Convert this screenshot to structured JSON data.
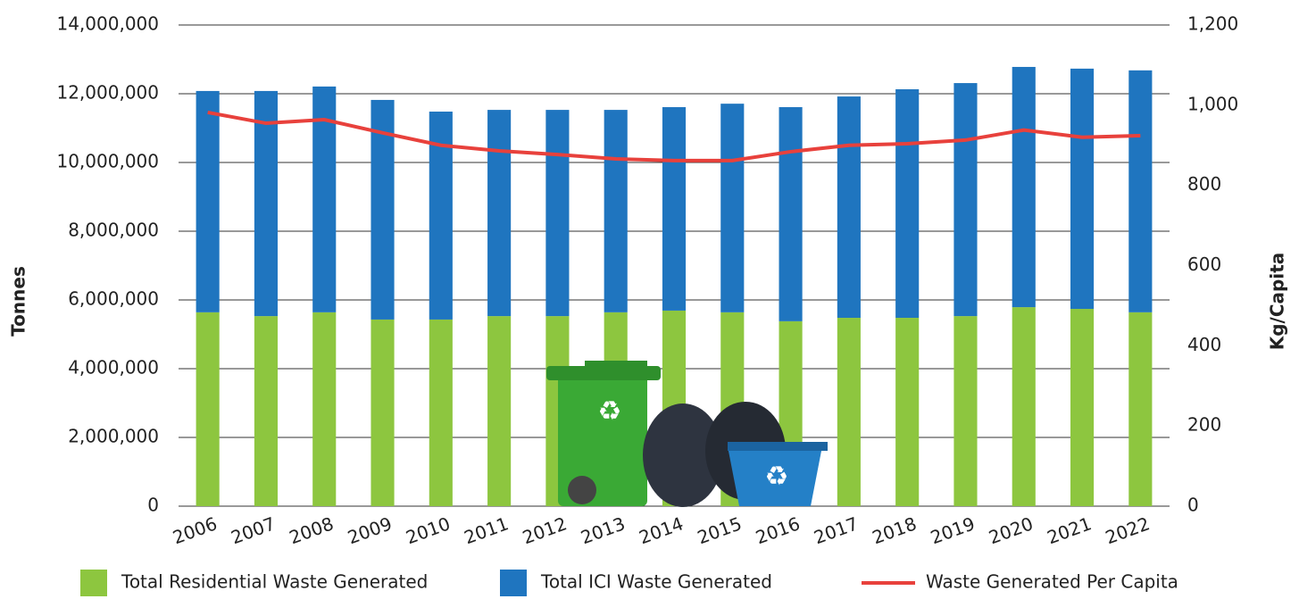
{
  "chart_data": {
    "type": "bar",
    "stacked": true,
    "y_label": "Tonnes",
    "y2_label": "Kg/Capita",
    "categories": [
      "2006",
      "2007",
      "2008",
      "2009",
      "2010",
      "2011",
      "2012",
      "2013",
      "2014",
      "2015",
      "2016",
      "2017",
      "2018",
      "2019",
      "2020",
      "2021",
      "2022"
    ],
    "series": [
      {
        "name": "Total Residential Waste Generated",
        "type": "bar",
        "color": "#8dc63f",
        "values": [
          5640000,
          5530000,
          5640000,
          5430000,
          5430000,
          5530000,
          5530000,
          5640000,
          5690000,
          5640000,
          5380000,
          5480000,
          5480000,
          5530000,
          5790000,
          5740000,
          5640000
        ]
      },
      {
        "name": "Total ICI Waste Generated",
        "type": "bar",
        "color": "#1f75bf",
        "values": [
          6440000,
          6550000,
          6570000,
          6390000,
          6050000,
          6000000,
          6000000,
          5890000,
          5920000,
          6070000,
          6230000,
          6440000,
          6650000,
          6780000,
          6990000,
          6990000,
          7040000
        ]
      },
      {
        "name": "Waste Generated Per Capita",
        "type": "line",
        "axis": "y2",
        "color": "#e8413c",
        "values": [
          982,
          955,
          964,
          931,
          900,
          886,
          877,
          866,
          862,
          862,
          884,
          900,
          904,
          913,
          938,
          920,
          924
        ]
      }
    ],
    "ylim": [
      0,
      14000000
    ],
    "yticks": [
      0,
      {
        "value": 2000000,
        "label": "2,000,000"
      },
      {
        "value": 4000000,
        "label": "4,000,000"
      },
      {
        "value": 6000000,
        "label": "6,000,000"
      },
      {
        "value": 8000000,
        "label": "8,000,000"
      },
      {
        "value": 10000000,
        "label": "10,000,000"
      },
      {
        "value": 12000000,
        "label": "12,000,000"
      },
      {
        "value": 14000000,
        "label": "14,000,000"
      }
    ],
    "y2lim": [
      0,
      1200
    ],
    "y2ticks": [
      0,
      200,
      400,
      600,
      800,
      {
        "value": 1000,
        "label": "1,000"
      },
      {
        "value": 1200,
        "label": "1,200"
      }
    ],
    "grid": true,
    "legend": "bottom"
  }
}
